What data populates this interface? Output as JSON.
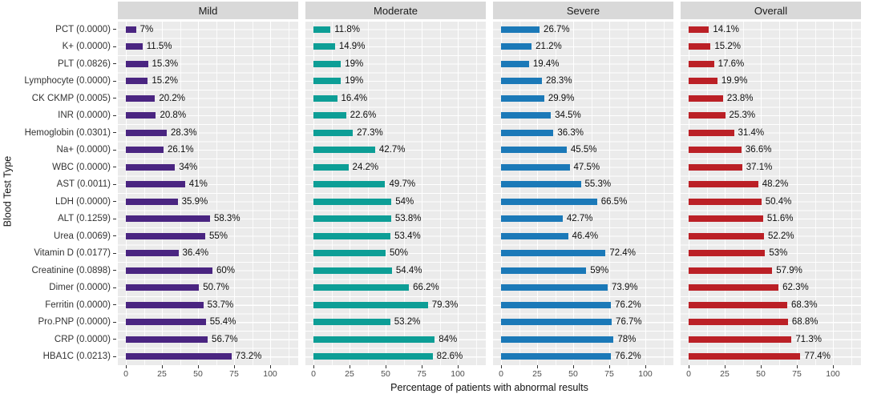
{
  "chart_data": {
    "type": "bar",
    "orientation": "horizontal",
    "title": "",
    "xlabel": "Percentage of patients with abnormal results",
    "ylabel": "Blood Test Type",
    "x_ticks": [
      "0",
      "25",
      "50",
      "75",
      "100"
    ],
    "x_tick_values": [
      0,
      25,
      50,
      75,
      100
    ],
    "xlim": [
      0,
      119
    ],
    "grid": "white on gray panel",
    "panel_bg": "#ebebeb",
    "header_bg": "#d9d9d9",
    "categories": [
      "PCT (0.0000)",
      "K+ (0.0000)",
      "PLT (0.0826)",
      "Lymphocyte (0.0000)",
      "CK CKMP (0.0005)",
      "INR (0.0000)",
      "Hemoglobin (0.0301)",
      "Na+ (0.0000)",
      "WBC (0.0000)",
      "AST (0.0011)",
      "LDH (0.0000)",
      "ALT (0.1259)",
      "Urea (0.0069)",
      "Vitamin D (0.0177)",
      "Creatinine (0.0898)",
      "Dimer (0.0000)",
      "Ferritin (0.0000)",
      "Pro.PNP (0.0000)",
      "CRP (0.0000)",
      "HBA1C (0.0213)"
    ],
    "series": [
      {
        "name": "Mild",
        "color": "#4a2581",
        "values": [
          7,
          11.5,
          15.3,
          15.2,
          20.2,
          20.8,
          28.3,
          26.1,
          34,
          41,
          35.9,
          58.3,
          55,
          36.4,
          60,
          50.7,
          53.7,
          55.4,
          56.7,
          73.2
        ],
        "labels": [
          "7%",
          "11.5%",
          "15.3%",
          "15.2%",
          "20.2%",
          "20.8%",
          "28.3%",
          "26.1%",
          "34%",
          "41%",
          "35.9%",
          "58.3%",
          "55%",
          "36.4%",
          "60%",
          "50.7%",
          "53.7%",
          "55.4%",
          "56.7%",
          "73.2%"
        ]
      },
      {
        "name": "Moderate",
        "color": "#0d9e96",
        "values": [
          11.8,
          14.9,
          19,
          19,
          16.4,
          22.6,
          27.3,
          42.7,
          24.2,
          49.7,
          54,
          53.8,
          53.4,
          50,
          54.4,
          66.2,
          79.3,
          53.2,
          84,
          82.6
        ],
        "labels": [
          "11.8%",
          "14.9%",
          "19%",
          "19%",
          "16.4%",
          "22.6%",
          "27.3%",
          "42.7%",
          "24.2%",
          "49.7%",
          "54%",
          "53.8%",
          "53.4%",
          "50%",
          "54.4%",
          "66.2%",
          "79.3%",
          "53.2%",
          "84%",
          "82.6%"
        ]
      },
      {
        "name": "Severe",
        "color": "#1b79b8",
        "values": [
          26.7,
          21.2,
          19.4,
          28.3,
          29.9,
          34.5,
          36.3,
          45.5,
          47.5,
          55.3,
          66.5,
          42.7,
          46.4,
          72.4,
          59,
          73.9,
          76.2,
          76.7,
          78,
          76.2
        ],
        "labels": [
          "26.7%",
          "21.2%",
          "19.4%",
          "28.3%",
          "29.9%",
          "34.5%",
          "36.3%",
          "45.5%",
          "47.5%",
          "55.3%",
          "66.5%",
          "42.7%",
          "46.4%",
          "72.4%",
          "59%",
          "73.9%",
          "76.2%",
          "76.7%",
          "78%",
          "76.2%"
        ]
      },
      {
        "name": "Overall",
        "color": "#bb2026",
        "values": [
          14.1,
          15.2,
          17.6,
          19.9,
          23.8,
          25.3,
          31.4,
          36.6,
          37.1,
          48.2,
          50.4,
          51.6,
          52.2,
          53,
          57.9,
          62.3,
          68.3,
          68.8,
          71.3,
          77.4
        ],
        "labels": [
          "14.1%",
          "15.2%",
          "17.6%",
          "19.9%",
          "23.8%",
          "25.3%",
          "31.4%",
          "36.6%",
          "37.1%",
          "48.2%",
          "50.4%",
          "51.6%",
          "52.2%",
          "53%",
          "57.9%",
          "62.3%",
          "68.3%",
          "68.8%",
          "71.3%",
          "77.4%"
        ]
      }
    ]
  }
}
